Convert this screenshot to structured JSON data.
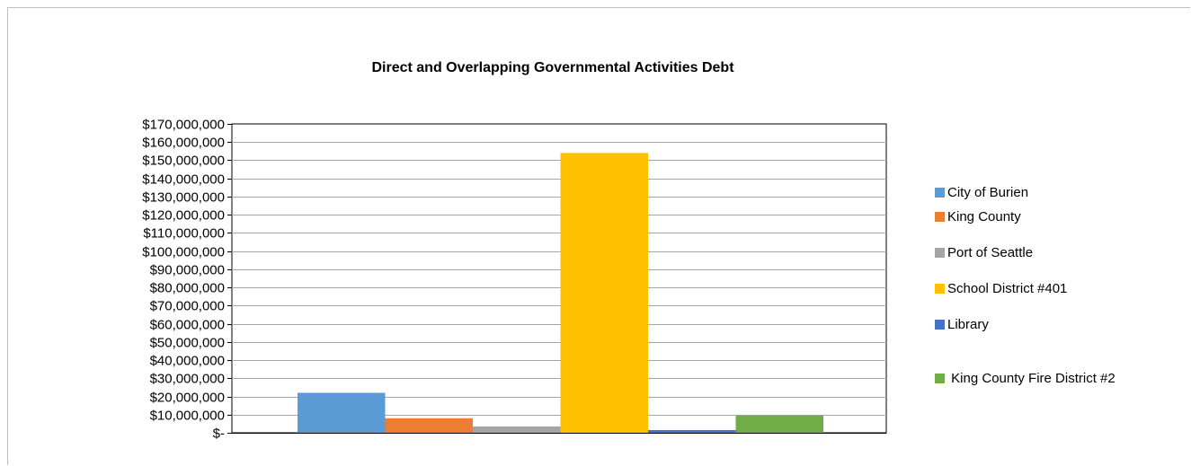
{
  "chart_data": {
    "type": "bar",
    "title": "Direct and Overlapping Governmental Activities Debt",
    "xlabel": "",
    "ylabel": "",
    "ylim": [
      0,
      170000000
    ],
    "y_tick_labels": [
      "$-",
      "$10,000,000",
      "$20,000,000",
      "$30,000,000",
      "$40,000,000",
      "$50,000,000",
      "$60,000,000",
      "$70,000,000",
      "$80,000,000",
      "$90,000,000",
      "$100,000,000",
      "$110,000,000",
      "$120,000,000",
      "$130,000,000",
      "$140,000,000",
      "$150,000,000",
      "$160,000,000",
      "$170,000,000"
    ],
    "grid": true,
    "legend_position": "right",
    "series": [
      {
        "name": "City of Burien",
        "value": 22000000,
        "color": "#5b9bd5"
      },
      {
        "name": "King County",
        "value": 8000000,
        "color": "#ed7d31"
      },
      {
        "name": "Port of Seattle",
        "value": 3500000,
        "color": "#a5a5a5"
      },
      {
        "name": "School District #401",
        "value": 154000000,
        "color": "#ffc000"
      },
      {
        "name": "Library",
        "value": 1500000,
        "color": "#4472c4"
      },
      {
        "name": " King County Fire District #2",
        "value": 9500000,
        "color": "#70ad47"
      }
    ]
  }
}
